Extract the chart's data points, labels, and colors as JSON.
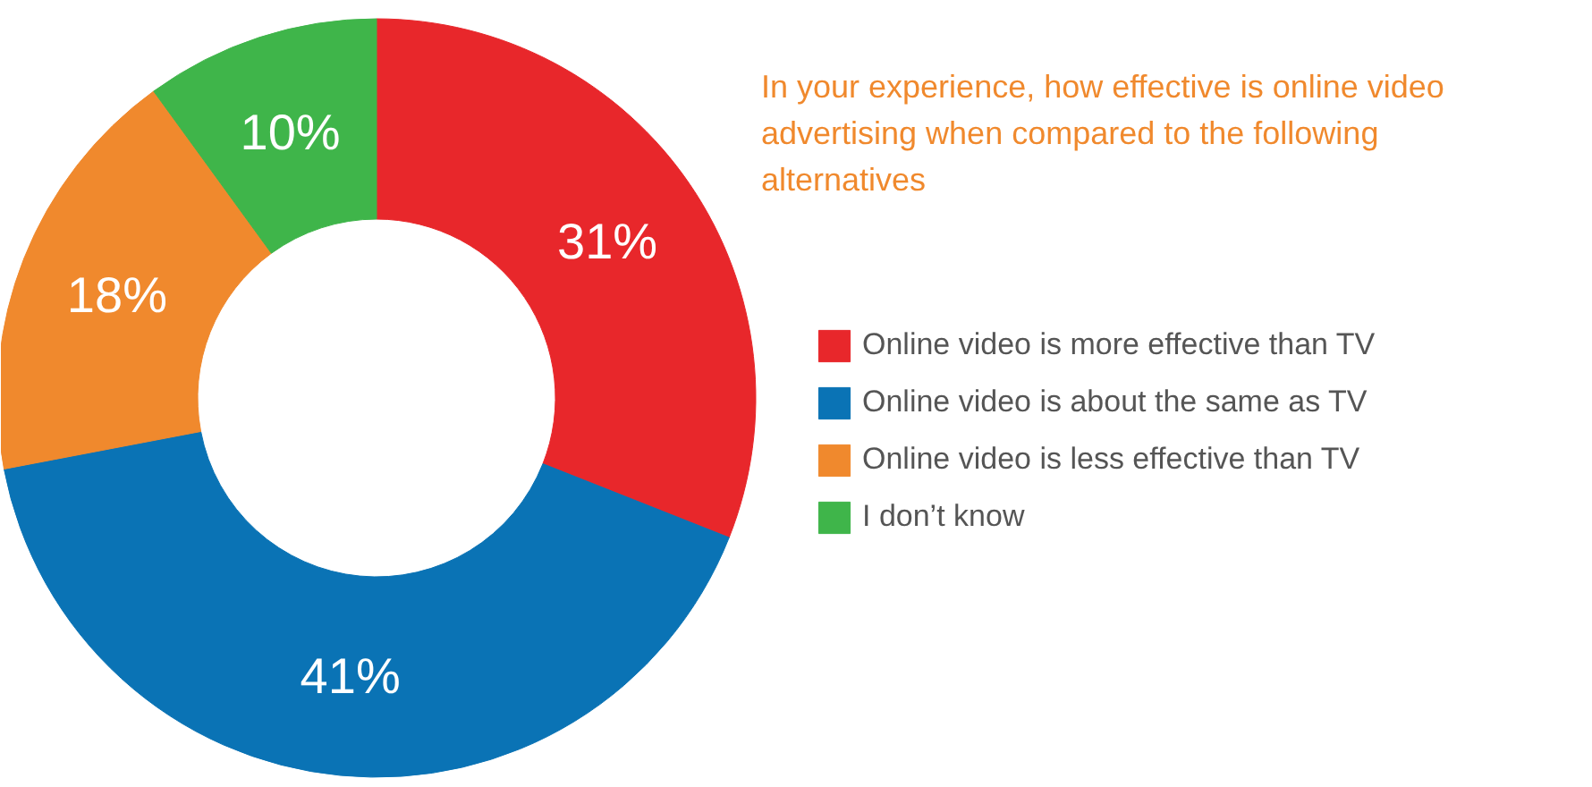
{
  "chart_data": {
    "type": "donut",
    "title": "In your experience, how effective is online video advertising when compared to the following alternatives",
    "categories": [
      "Online video is more effective than TV",
      "Online video is about the same as TV",
      "Online video is less effective than TV",
      "I don’t know"
    ],
    "values": [
      31,
      41,
      18,
      10
    ],
    "value_labels": [
      "31%",
      "41%",
      "18%",
      "10%"
    ],
    "colors": [
      "#e8272b",
      "#0a73b5",
      "#f0892d",
      "#3fb54a"
    ],
    "legend": "right"
  }
}
